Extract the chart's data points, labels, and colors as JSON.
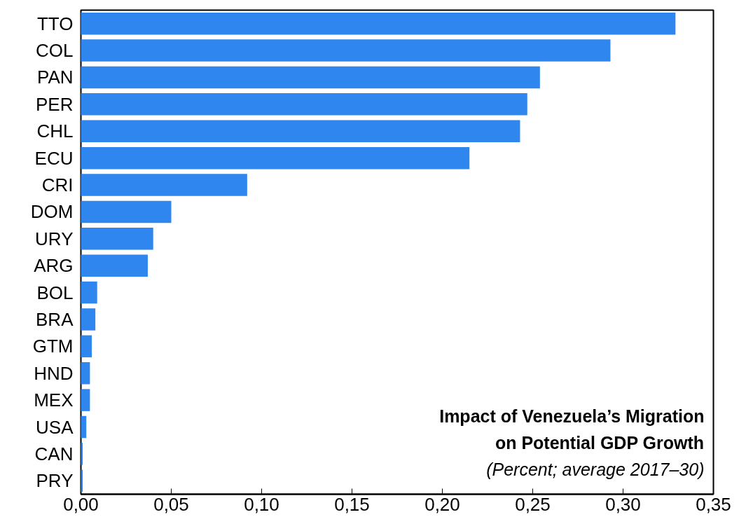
{
  "chart_data": {
    "type": "bar",
    "orientation": "horizontal",
    "title": "Impact of Venezuela’s Migration\non Potential GDP Growth",
    "subtitle": "(Percent; average 2017–30)",
    "categories": [
      "TTO",
      "COL",
      "PAN",
      "PER",
      "CHL",
      "ECU",
      "CRI",
      "DOM",
      "URY",
      "ARG",
      "BOL",
      "BRA",
      "GTM",
      "HND",
      "MEX",
      "USA",
      "CAN",
      "PRY"
    ],
    "values": [
      0.329,
      0.293,
      0.254,
      0.247,
      0.243,
      0.215,
      0.092,
      0.05,
      0.04,
      0.037,
      0.009,
      0.008,
      0.006,
      0.005,
      0.005,
      0.003,
      0.001,
      0.001
    ],
    "color": "#2e86ee",
    "xlim": [
      0,
      0.35
    ],
    "xticks": [
      {
        "value": 0,
        "label": "0,00"
      },
      {
        "value": 0.05,
        "label": "0,05"
      },
      {
        "value": 0.1,
        "label": "0,10"
      },
      {
        "value": 0.15,
        "label": "0,15"
      },
      {
        "value": 0.2,
        "label": "0,20"
      },
      {
        "value": 0.25,
        "label": "0,25"
      },
      {
        "value": 0.3,
        "label": "0,30"
      },
      {
        "value": 0.35,
        "label": "0,35"
      }
    ],
    "grid": false
  }
}
